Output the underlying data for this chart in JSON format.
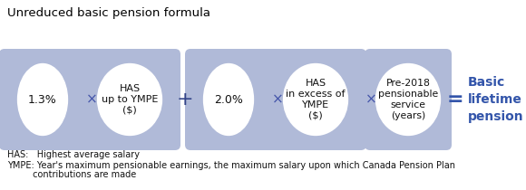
{
  "title": "Unreduced basic pension formula",
  "title_fontsize": 9.5,
  "title_color": "#000000",
  "bg_color": "#ffffff",
  "box_color": "#b0bad8",
  "ellipse_face": "#ffffff",
  "ellipse_edge": "#b0bad8",
  "result_color": "#3355aa",
  "group1": {
    "circle1_text": "1.3%",
    "circle2_text": "HAS\nup to YMPE\n($)"
  },
  "group2": {
    "circle1_text": "2.0%",
    "circle2_text": "HAS\nin excess of\nYMPE\n($)"
  },
  "group3": {
    "circle_text": "Pre-2018\npensionable\nservice\n(years)"
  },
  "result_text": "Basic\nlifetime\npension",
  "operator_x": "×",
  "operator_plus": "+",
  "operator_eq": "=",
  "footnote1": "HAS:   Highest average salary",
  "footnote2": "YMPE: Year's maximum pensionable earnings, the maximum salary upon which Canada Pension Plan",
  "footnote3": "         contributions are made"
}
